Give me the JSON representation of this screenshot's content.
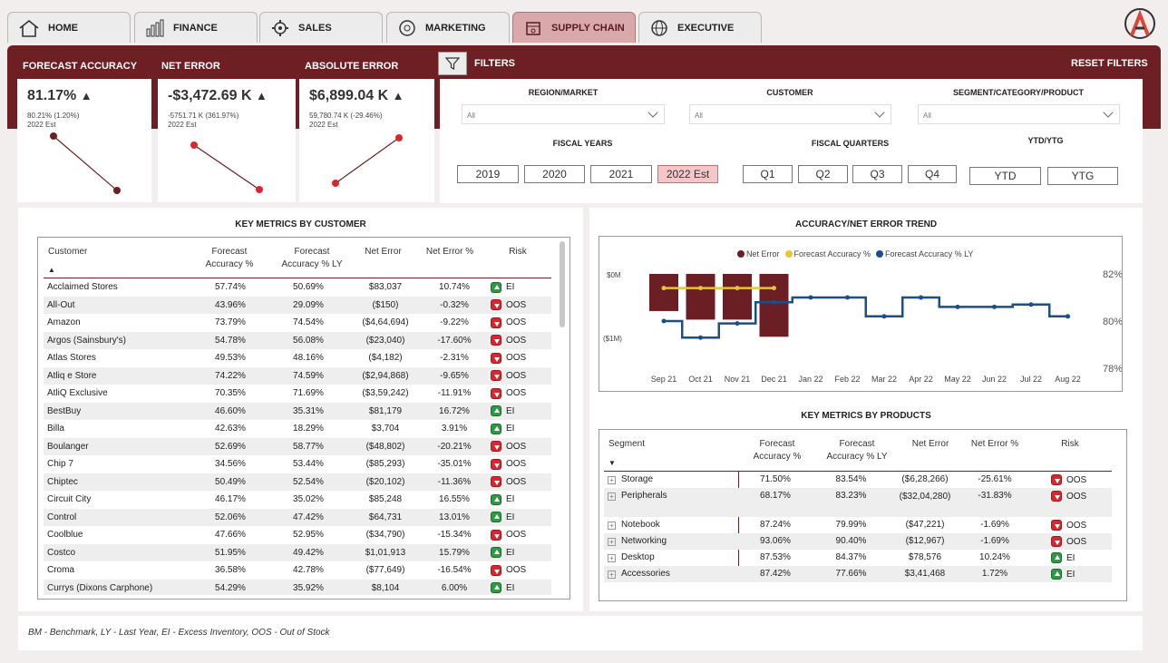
{
  "tabs": [
    {
      "label": "HOME",
      "icon": "home-icon"
    },
    {
      "label": "FINANCE",
      "icon": "finance-chart-icon"
    },
    {
      "label": "SALES",
      "icon": "sales-gear-icon"
    },
    {
      "label": "MARKETING",
      "icon": "marketing-megaphone-icon"
    },
    {
      "label": "SUPPLY CHAIN",
      "icon": "supply-chain-box-icon"
    },
    {
      "label": "EXECUTIVE",
      "icon": "executive-globe-icon"
    }
  ],
  "kpis": [
    {
      "title": "FORECAST ACCURACY",
      "value": "81.17%",
      "change": "80.21% (1.20%)",
      "period": "2022 Est",
      "trend": "down"
    },
    {
      "title": "NET ERROR",
      "value": "-$3,472.69 K",
      "change": "-5751.71 K (361.97%)",
      "period": "2022 Est",
      "trend": "down"
    },
    {
      "title": "ABSOLUTE ERROR",
      "value": "$6,899.04 K",
      "change": "59,780.74 K (-29.46%)",
      "period": "2022 Est",
      "trend": "up"
    }
  ],
  "filters": {
    "title": "FILTERS",
    "reset": "RESET FILTERS",
    "region_label": "REGION/MARKET",
    "region_value": "All",
    "customer_label": "CUSTOMER",
    "customer_value": "All",
    "segment_label": "SEGMENT/CATEGORY/PRODUCT",
    "segment_value": "All",
    "fiscal_years_label": "FISCAL YEARS",
    "fiscal_years": [
      "2019",
      "2020",
      "2021",
      "2022 Est"
    ],
    "selected_year": "2022 Est",
    "fiscal_quarters_label": "FISCAL QUARTERS",
    "fiscal_quarters": [
      "Q1",
      "Q2",
      "Q3",
      "Q4"
    ],
    "ytd_label": "YTD/YTG",
    "ytd_options": [
      "YTD",
      "YTG"
    ]
  },
  "customer_table": {
    "title": "KEY METRICS BY CUSTOMER",
    "headers": [
      "Customer",
      "Forecast Accuracy %",
      "Forecast Accuracy % LY",
      "Net Error",
      "Net Error %",
      "Risk"
    ],
    "rows": [
      [
        "Acclaimed Stores",
        "57.74%",
        "50.69%",
        "$83,037",
        "10.74%",
        "EI"
      ],
      [
        "All-Out",
        "43.96%",
        "29.09%",
        "($150)",
        "-0.32%",
        "OOS"
      ],
      [
        "Amazon",
        "73.79%",
        "74.54%",
        "($4,64,694)",
        "-9.22%",
        "OOS"
      ],
      [
        "Argos (Sainsbury's)",
        "54.78%",
        "56.08%",
        "($23,040)",
        "-17.60%",
        "OOS"
      ],
      [
        "Atlas Stores",
        "49.53%",
        "48.16%",
        "($4,182)",
        "-2.31%",
        "OOS"
      ],
      [
        "Atliq e Store",
        "74.22%",
        "74.59%",
        "($2,94,868)",
        "-9.65%",
        "OOS"
      ],
      [
        "AtliQ Exclusive",
        "70.35%",
        "71.69%",
        "($3,59,242)",
        "-11.91%",
        "OOS"
      ],
      [
        "BestBuy",
        "46.60%",
        "35.31%",
        "$81,179",
        "16.72%",
        "EI"
      ],
      [
        "Billa",
        "42.63%",
        "18.29%",
        "$3,704",
        "3.91%",
        "EI"
      ],
      [
        "Boulanger",
        "52.69%",
        "58.77%",
        "($48,802)",
        "-20.21%",
        "OOS"
      ],
      [
        "Chip 7",
        "34.56%",
        "53.44%",
        "($85,293)",
        "-35.01%",
        "OOS"
      ],
      [
        "Chiptec",
        "50.49%",
        "52.54%",
        "($20,102)",
        "-11.36%",
        "OOS"
      ],
      [
        "Circuit City",
        "46.17%",
        "35.02%",
        "$85,248",
        "16.55%",
        "EI"
      ],
      [
        "Control",
        "52.06%",
        "47.42%",
        "$64,731",
        "13.01%",
        "EI"
      ],
      [
        "Coolblue",
        "47.66%",
        "52.95%",
        "($34,790)",
        "-15.34%",
        "OOS"
      ],
      [
        "Costco",
        "51.95%",
        "49.42%",
        "$1,01,913",
        "15.79%",
        "EI"
      ],
      [
        "Croma",
        "36.58%",
        "42.78%",
        "($77,649)",
        "-16.54%",
        "OOS"
      ],
      [
        "Currys (Dixons Carphone)",
        "54.29%",
        "35.92%",
        "$8,104",
        "6.00%",
        "EI"
      ]
    ]
  },
  "trend": {
    "title": "ACCURACY/NET ERROR TREND",
    "legend": [
      "Net Error",
      "Forecast Accuracy %",
      "Forecast Accuracy % LY"
    ],
    "y_left_labels": [
      "$0M",
      "($1M)"
    ],
    "y_right_labels": [
      "82%",
      "80%",
      "78%"
    ]
  },
  "chart_data": {
    "type": "bar",
    "title": "ACCURACY/NET ERROR TREND",
    "categories": [
      "Sep 21",
      "Oct 21",
      "Nov 21",
      "Dec 21",
      "Jan 22",
      "Feb 22",
      "Mar 22",
      "Apr 22",
      "May 22",
      "Jun 22",
      "Jul 22",
      "Aug 22"
    ],
    "series": [
      {
        "name": "Net Error",
        "type": "bar",
        "axis": "left",
        "values": [
          -0.65,
          -0.8,
          -0.8,
          -1.1,
          null,
          null,
          null,
          null,
          null,
          null,
          null,
          null
        ]
      },
      {
        "name": "Forecast Accuracy %",
        "type": "step-line",
        "axis": "right",
        "values": [
          81.4,
          81.4,
          81.4,
          81.4,
          null,
          null,
          null,
          null,
          null,
          null,
          null,
          null
        ]
      },
      {
        "name": "Forecast Accuracy % LY",
        "type": "step-line",
        "axis": "right",
        "values": [
          80.0,
          79.3,
          79.9,
          80.8,
          81.0,
          81.0,
          80.2,
          81.0,
          80.6,
          80.6,
          80.7,
          80.2
        ]
      }
    ],
    "y_left_labels": [
      "$0M",
      "($1M)"
    ],
    "y_right_labels": [
      "82%",
      "80%",
      "78%"
    ],
    "colors": {
      "Net Error": "#6b1f24",
      "Forecast Accuracy %": "#e8c534",
      "Forecast Accuracy % LY": "#1c4f86"
    }
  },
  "product_table": {
    "title": "KEY METRICS BY PRODUCTS",
    "headers": [
      "Segment",
      "Forecast Accuracy %",
      "Forecast Accuracy % LY",
      "Net Error",
      "Net Error %",
      "Risk"
    ],
    "rows": [
      [
        "Storage",
        "71.50%",
        "83.54%",
        "($6,28,266)",
        "-25.61%",
        "OOS"
      ],
      [
        "Peripherals",
        "68.17%",
        "83.23%",
        "($32,04,280)",
        "-31.83%",
        "OOS"
      ],
      [
        "Notebook",
        "87.24%",
        "79.99%",
        "($47,221)",
        "-1.69%",
        "OOS"
      ],
      [
        "Networking",
        "93.06%",
        "90.40%",
        "($12,967)",
        "-1.69%",
        "OOS"
      ],
      [
        "Desktop",
        "87.53%",
        "84.37%",
        "$78,576",
        "10.24%",
        "EI"
      ],
      [
        "Accessories",
        "87.42%",
        "77.66%",
        "$3,41,468",
        "1.72%",
        "EI"
      ]
    ]
  },
  "footnote": "BM - Benchmark, LY - Last Year, EI - Excess Inventory, OOS - Out of Stock",
  "colors": {
    "brand": "#6e1f24",
    "accent": "#f5c6c8",
    "ei": "#2e9a44",
    "oos": "#d8272f"
  }
}
